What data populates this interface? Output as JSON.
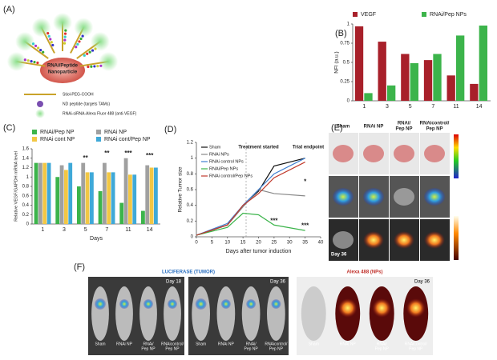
{
  "panels": {
    "labels": [
      "(A)",
      "(B)",
      "(C)",
      "(D)",
      "(E)",
      "(F)"
    ],
    "a": {
      "core": [
        "RNAi/Peptide",
        "Nanoparticle"
      ],
      "legend": [
        "Stiol-PEG-COOH",
        "ND peptide (targets TAMs)",
        "RNAi-siRNA-Alexa Fluor 488 (anti-VEGF)"
      ]
    },
    "e": {
      "columns": [
        [
          "Sham"
        ],
        [
          "RNAi NP"
        ],
        [
          "RNAi/",
          "Pep NP"
        ],
        [
          "RNAicontrol/",
          "Pep NP"
        ]
      ],
      "day": "Day 36"
    },
    "f": {
      "headers": [
        "LUCIFERASE (TUMOR)",
        "Alexa 488 (NPs)"
      ],
      "days": [
        "Day 18",
        "Day 36",
        "Day 36"
      ],
      "mice": [
        [
          "Sham"
        ],
        [
          "RNAi NP"
        ],
        [
          "RNAi/",
          "Pep NP"
        ],
        [
          "RNAicontrol/",
          "Pep NP"
        ]
      ]
    }
  },
  "chart_data": [
    {
      "type": "bar",
      "categories": [
        "1",
        "3",
        "5",
        "7",
        "11",
        "14"
      ],
      "series": [
        {
          "name": "VEGF",
          "color": "#a8202a",
          "values": [
            0.97,
            0.77,
            0.61,
            0.53,
            0.33,
            0.22
          ]
        },
        {
          "name": "RNAi/Pep NPs",
          "color": "#3cb44b",
          "values": [
            0.1,
            0.2,
            0.49,
            0.61,
            0.85,
            0.98
          ]
        }
      ],
      "ylabel": "NFI (a.u.)",
      "ylim": [
        0,
        1
      ],
      "yticks": [
        0,
        0.25,
        0.5,
        0.75,
        1
      ],
      "legend": "top"
    },
    {
      "type": "bar",
      "categories": [
        "1",
        "3",
        "5",
        "7",
        "11",
        "14"
      ],
      "series": [
        {
          "name": "RNAi/Pep NP",
          "color": "#3cb44b",
          "values": [
            1.3,
            1.0,
            0.8,
            0.7,
            0.45,
            0.28
          ]
        },
        {
          "name": "RNAi NP",
          "color": "#a0a0a0",
          "values": [
            1.3,
            1.25,
            1.3,
            1.3,
            1.4,
            1.25
          ]
        },
        {
          "name": "RNAi cont NP",
          "color": "#f2c744",
          "values": [
            1.3,
            1.15,
            1.1,
            1.1,
            1.05,
            1.2
          ]
        },
        {
          "name": "RNAi cont/Pep NP",
          "color": "#3fa9d8",
          "values": [
            1.3,
            1.3,
            1.1,
            1.1,
            1.05,
            1.2
          ]
        }
      ],
      "xlabel": "Days",
      "ylabel": "Relative VEGF/GAPDH mRNA level",
      "ylim": [
        0,
        1.6
      ],
      "yticks": [
        0,
        0.2,
        0.4,
        0.6,
        0.8,
        1,
        1.2,
        1.4,
        1.6
      ],
      "annotations": [
        {
          "text": "**",
          "x": "5",
          "y": 1.4
        },
        {
          "text": "**",
          "x": "7",
          "y": 1.5
        },
        {
          "text": "***",
          "x": "11",
          "y": 1.5
        },
        {
          "text": "***",
          "x": "14",
          "y": 1.45
        }
      ],
      "legend": "top"
    },
    {
      "type": "line",
      "x": [
        0,
        10,
        15,
        20,
        25,
        35
      ],
      "series": [
        {
          "name": "Sham",
          "color": "#111111",
          "values": [
            0.02,
            0.15,
            0.4,
            0.58,
            0.9,
            1.0
          ]
        },
        {
          "name": "RNAi NPs",
          "color": "#888888",
          "values": [
            0.02,
            0.15,
            0.38,
            0.6,
            0.55,
            0.52
          ]
        },
        {
          "name": "RNAi control NPs",
          "color": "#3f7fd0",
          "values": [
            0.02,
            0.17,
            0.4,
            0.6,
            0.8,
            1.0
          ]
        },
        {
          "name": "RNAi/Pep NPs",
          "color": "#3cb44b",
          "values": [
            0.02,
            0.12,
            0.3,
            0.28,
            0.15,
            0.08
          ]
        },
        {
          "name": "RNAi control/Pep NPs",
          "color": "#c0392b",
          "values": [
            0.02,
            0.15,
            0.4,
            0.55,
            0.75,
            0.95
          ]
        }
      ],
      "xlabel": "Days after tumor induction",
      "ylabel": "Relative Tumor size",
      "xlim": [
        0,
        40
      ],
      "xticks": [
        0,
        5,
        10,
        15,
        20,
        25,
        30,
        35,
        40
      ],
      "ylim": [
        0,
        1.2
      ],
      "yticks": [
        0,
        0.2,
        0.4,
        0.6,
        0.8,
        1,
        1.2
      ],
      "vline_x": 16,
      "annotations": [
        {
          "text": "Treatment started",
          "x": 20,
          "y": 1.14
        },
        {
          "text": "Trial endpoint",
          "x": 36,
          "y": 1.14
        },
        {
          "text": "***",
          "x": 25,
          "y": 0.2
        },
        {
          "text": "***",
          "x": 35,
          "y": 0.14
        },
        {
          "text": "*",
          "x": 35,
          "y": 0.7
        }
      ],
      "legend": "upper left"
    }
  ]
}
